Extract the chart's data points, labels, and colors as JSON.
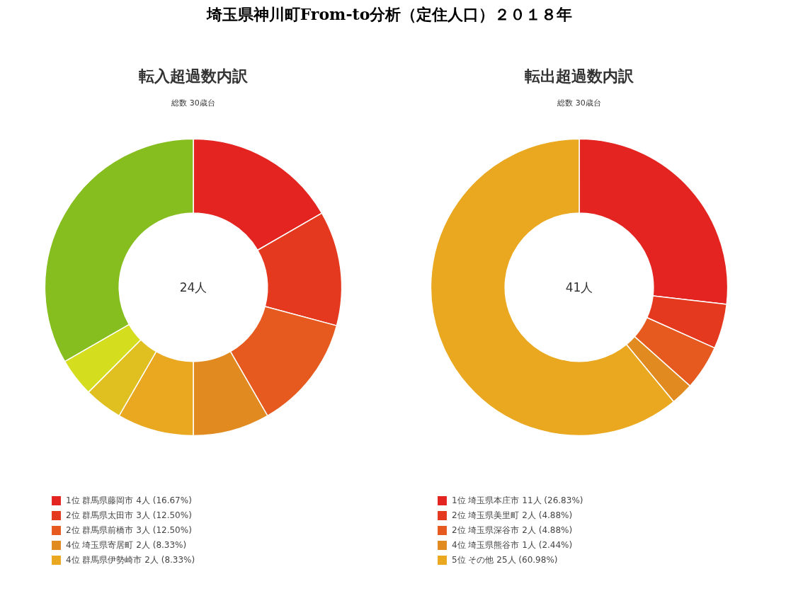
{
  "chart_data": [
    {
      "type": "donut",
      "title": "転入超過数内訳",
      "subtitle": "総数 30歳台",
      "annotations": [
        "埼玉県神川町From-to分析（定住人口）２０１８年",
        "24人"
      ],
      "categories": [
        "1位 群馬県藤岡市 4人 (16.67%)",
        "2位 群馬県太田市 3人 (12.50%)",
        "2位 群馬県前橋市 3人 (12.50%)",
        "4位 埼玉県寄居町 2人 (8.33%)",
        "4位 群馬県伊勢崎市 2人 (8.33%)",
        null,
        null,
        null
      ],
      "values": [
        4,
        3,
        3,
        2,
        2,
        1,
        1,
        8
      ],
      "colors": [
        "#e32420",
        "#e4391f",
        "#e65a1f",
        "#e08a20",
        "#e9a81f",
        "#e0c020",
        "#d4de1f",
        "#86bd1f"
      ],
      "legend": "bottom"
    },
    {
      "type": "donut",
      "title": "転出超過数内訳",
      "subtitle": "総数 30歳台",
      "annotations": [
        "41人"
      ],
      "categories": [
        "1位 埼玉県本庄市 11人 (26.83%)",
        "2位 埼玉県美里町 2人 (4.88%)",
        "2位 埼玉県深谷市 2人 (4.88%)",
        "4位 埼玉県熊谷市 1人 (2.44%)",
        "5位 その他 25人 (60.98%)"
      ],
      "values": [
        11,
        2,
        2,
        1,
        25
      ],
      "colors": [
        "#e32420",
        "#e4391f",
        "#e65a1f",
        "#e08a20",
        "#e9a81f"
      ],
      "legend": "bottom"
    }
  ]
}
